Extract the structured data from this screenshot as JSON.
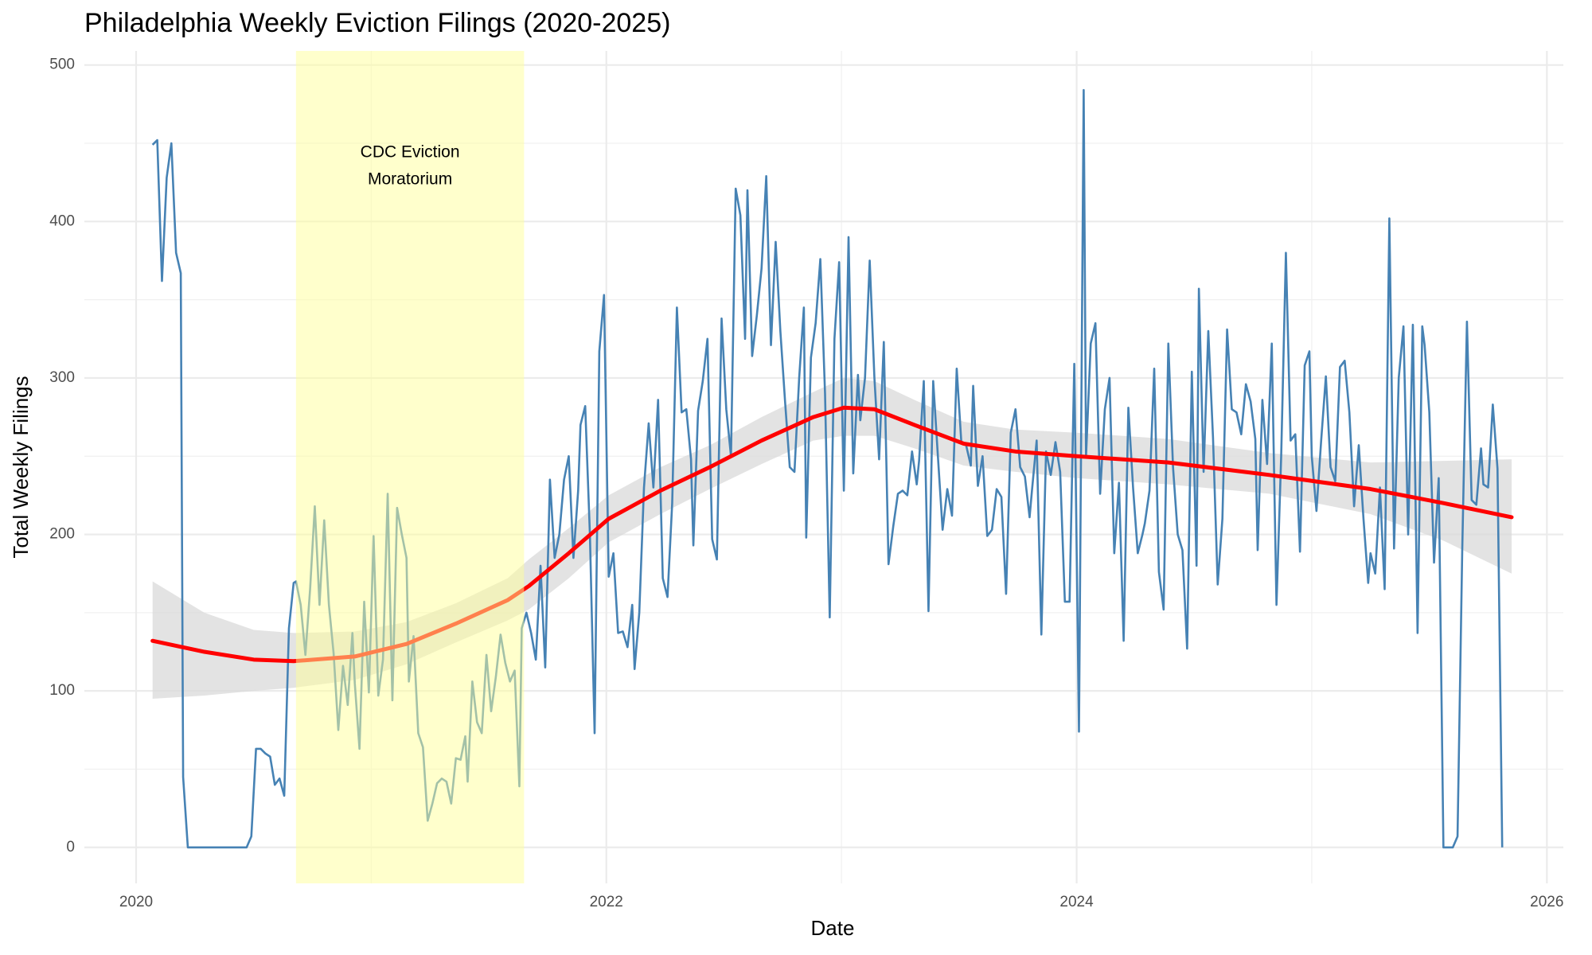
{
  "chart_data": {
    "type": "line",
    "title": "Philadelphia Weekly Eviction Filings (2020-2025)",
    "x_label": "Date",
    "y_label": "Total Weekly Filings",
    "xlim": [
      2019.78,
      2026.07
    ],
    "ylim": [
      -23,
      509
    ],
    "xticks": [
      2020,
      2022,
      2024,
      2026
    ],
    "x_minor_ticks": [
      2021,
      2023,
      2025
    ],
    "yticks": [
      0,
      100,
      200,
      300,
      400,
      500
    ],
    "y_minor_ticks": [
      50,
      150,
      250,
      350,
      450
    ],
    "grid": true,
    "shaded_regions": [
      {
        "x": [
          2020.68,
          2021.65
        ],
        "color": "#ffff99",
        "label": [
          "CDC Eviction",
          "Moratorium"
        ]
      }
    ],
    "series": [
      {
        "color": "#4682b4",
        "x": [
          2020.07,
          2020.09,
          2020.11,
          2020.13,
          2020.15,
          2020.17,
          2020.19,
          2020.2,
          2020.22,
          2020.24,
          2020.26,
          2020.28,
          2020.3,
          2020.32,
          2020.34,
          2020.36,
          2020.38,
          2020.4,
          2020.42,
          2020.43,
          2020.45,
          2020.47,
          2020.49,
          2020.51,
          2020.53,
          2020.55,
          2020.57,
          2020.59,
          2020.61,
          2020.63,
          2020.65,
          2020.67,
          2020.68,
          2020.7,
          2020.72,
          2020.74,
          2020.76,
          2020.78,
          2020.8,
          2020.82,
          2020.84,
          2020.86,
          2020.88,
          2020.9,
          2020.92,
          2020.93,
          2020.95,
          2020.97,
          2020.99,
          2021.01,
          2021.03,
          2021.05,
          2021.07,
          2021.09,
          2021.11,
          2021.13,
          2021.15,
          2021.16,
          2021.18,
          2021.2,
          2021.22,
          2021.24,
          2021.26,
          2021.28,
          2021.3,
          2021.32,
          2021.34,
          2021.36,
          2021.38,
          2021.4,
          2021.41,
          2021.43,
          2021.45,
          2021.47,
          2021.49,
          2021.51,
          2021.53,
          2021.55,
          2021.57,
          2021.59,
          2021.61,
          2021.63,
          2021.64,
          2021.66,
          2021.68,
          2021.7,
          2021.72,
          2021.74,
          2021.76,
          2021.78,
          2021.8,
          2021.82,
          2021.84,
          2021.86,
          2021.88,
          2021.89,
          2021.91,
          2021.93,
          2021.95,
          2021.97,
          2021.99,
          2022.01,
          2022.03,
          2022.05,
          2022.07,
          2022.09,
          2022.11,
          2022.12,
          2022.14,
          2022.16,
          2022.18,
          2022.2,
          2022.22,
          2022.24,
          2022.26,
          2022.28,
          2022.3,
          2022.32,
          2022.34,
          2022.36,
          2022.37,
          2022.39,
          2022.41,
          2022.43,
          2022.45,
          2022.47,
          2022.49,
          2022.51,
          2022.53,
          2022.55,
          2022.57,
          2022.59,
          2022.6,
          2022.62,
          2022.64,
          2022.66,
          2022.68,
          2022.7,
          2022.72,
          2022.74,
          2022.76,
          2022.78,
          2022.8,
          2022.82,
          2022.84,
          2022.85,
          2022.87,
          2022.89,
          2022.91,
          2022.93,
          2022.95,
          2022.97,
          2022.99,
          2023.01,
          2023.03,
          2023.05,
          2023.07,
          2023.08,
          2023.1,
          2023.12,
          2023.14,
          2023.16,
          2023.18,
          2023.2,
          2023.22,
          2023.24,
          2023.26,
          2023.28,
          2023.3,
          2023.32,
          2023.33,
          2023.35,
          2023.37,
          2023.39,
          2023.41,
          2023.43,
          2023.45,
          2023.47,
          2023.49,
          2023.51,
          2023.53,
          2023.55,
          2023.56,
          2023.58,
          2023.6,
          2023.62,
          2023.64,
          2023.66,
          2023.68,
          2023.7,
          2023.72,
          2023.74,
          2023.76,
          2023.78,
          2023.8,
          2023.81,
          2023.83,
          2023.85,
          2023.87,
          2023.89,
          2023.91,
          2023.93,
          2023.95,
          2023.97,
          2023.99,
          2024.01,
          2024.03,
          2024.04,
          2024.06,
          2024.08,
          2024.1,
          2024.12,
          2024.14,
          2024.16,
          2024.18,
          2024.2,
          2024.22,
          2024.24,
          2024.26,
          2024.28,
          2024.29,
          2024.31,
          2024.33,
          2024.35,
          2024.37,
          2024.39,
          2024.41,
          2024.43,
          2024.45,
          2024.47,
          2024.49,
          2024.51,
          2024.52,
          2024.54,
          2024.56,
          2024.58,
          2024.6,
          2024.62,
          2024.64,
          2024.66,
          2024.68,
          2024.7,
          2024.72,
          2024.74,
          2024.76,
          2024.77,
          2024.79,
          2024.81,
          2024.83,
          2024.85,
          2024.87,
          2024.89,
          2024.91,
          2024.93,
          2024.95,
          2024.97,
          2024.99,
          2025.0,
          2025.02,
          2025.04,
          2025.06,
          2025.08,
          2025.1,
          2025.12,
          2025.14,
          2025.16,
          2025.18,
          2025.2,
          2025.22,
          2025.24,
          2025.25,
          2025.27,
          2025.29,
          2025.31,
          2025.33,
          2025.35,
          2025.37,
          2025.39,
          2025.41,
          2025.43,
          2025.45,
          2025.47,
          2025.48,
          2025.5,
          2025.52,
          2025.54,
          2025.56,
          2025.58,
          2025.6,
          2025.62,
          2025.64,
          2025.66,
          2025.68,
          2025.7,
          2025.72,
          2025.73,
          2025.75,
          2025.77,
          2025.79,
          2025.81
        ],
        "values": [
          449,
          452,
          362,
          428,
          450,
          380,
          367,
          45,
          0,
          0,
          0,
          0,
          0,
          0,
          0,
          0,
          0,
          0,
          0,
          0,
          0,
          0,
          7,
          63,
          63,
          60,
          58,
          40,
          44,
          33,
          140,
          169,
          170,
          155,
          123,
          165,
          218,
          155,
          209,
          155,
          124,
          75,
          116,
          91,
          137,
          105,
          63,
          157,
          99,
          199,
          97,
          120,
          226,
          94,
          217,
          200,
          185,
          106,
          135,
          73,
          64,
          17,
          28,
          41,
          44,
          42,
          28,
          57,
          56,
          71,
          42,
          106,
          80,
          73,
          123,
          87,
          109,
          136,
          118,
          106,
          113,
          39,
          140,
          150,
          137,
          120,
          180,
          115,
          235,
          185,
          200,
          235,
          250,
          185,
          228,
          270,
          282,
          200,
          73,
          317,
          353,
          173,
          188,
          137,
          138,
          128,
          155,
          114,
          150,
          230,
          271,
          230,
          286,
          172,
          160,
          220,
          345,
          278,
          280,
          248,
          193,
          279,
          298,
          325,
          197,
          184,
          338,
          280,
          250,
          421,
          404,
          325,
          420,
          314,
          340,
          370,
          429,
          321,
          387,
          330,
          285,
          243,
          240,
          300,
          345,
          198,
          313,
          335,
          376,
          290,
          147,
          325,
          374,
          228,
          390,
          239,
          302,
          273,
          300,
          375,
          300,
          248,
          323,
          181,
          205,
          226,
          228,
          225,
          253,
          232,
          247,
          298,
          151,
          298,
          250,
          203,
          229,
          212,
          306,
          258,
          257,
          244,
          295,
          231,
          250,
          199,
          203,
          229,
          224,
          162,
          265,
          280,
          243,
          237,
          211,
          228,
          260,
          136,
          253,
          238,
          259,
          240,
          157,
          157,
          309,
          74,
          484,
          250,
          322,
          335,
          226,
          280,
          300,
          188,
          233,
          132,
          281,
          230,
          188,
          200,
          207,
          228,
          306,
          176,
          152,
          322,
          243,
          200,
          190,
          127,
          304,
          180,
          357,
          240,
          330,
          262,
          168,
          210,
          331,
          280,
          278,
          264,
          296,
          285,
          261,
          190,
          286,
          245,
          322,
          155,
          250,
          380,
          260,
          264,
          189,
          308,
          317,
          250,
          215,
          260,
          301,
          243,
          234,
          307,
          311,
          278,
          218,
          257,
          210,
          169,
          188,
          175,
          230,
          165,
          402,
          191,
          300,
          333,
          200,
          334,
          137,
          333,
          321,
          278,
          182,
          236,
          0,
          0,
          0,
          7,
          190,
          336,
          222,
          219,
          255,
          232,
          230,
          283,
          242,
          0
        ]
      }
    ],
    "smooth": {
      "color": "#ff0000",
      "band_color": "#d9d9d9",
      "x": [
        2020.07,
        2020.29,
        2020.5,
        2020.67,
        2020.93,
        2021.15,
        2021.36,
        2021.58,
        2021.67,
        2021.84,
        2022.01,
        2022.23,
        2022.44,
        2022.66,
        2022.88,
        2023.01,
        2023.14,
        2023.31,
        2023.52,
        2023.74,
        2024.0,
        2024.39,
        2024.82,
        2025.25,
        2025.56,
        2025.85
      ],
      "values": [
        132,
        125,
        120,
        119,
        122,
        130,
        143,
        158,
        167,
        188,
        210,
        228,
        243,
        260,
        275,
        281,
        280,
        270,
        258,
        253,
        250,
        246,
        238,
        229,
        220,
        211
      ],
      "lower": [
        95,
        97,
        100,
        102,
        107,
        117,
        131,
        145,
        152,
        172,
        195,
        213,
        229,
        245,
        260,
        263,
        263,
        255,
        244,
        240,
        236,
        232,
        226,
        213,
        196,
        175
      ],
      "upper": [
        170,
        150,
        139,
        137,
        138,
        144,
        156,
        172,
        184,
        204,
        225,
        243,
        257,
        275,
        291,
        300,
        298,
        286,
        272,
        267,
        265,
        261,
        252,
        246,
        247,
        248
      ]
    }
  }
}
